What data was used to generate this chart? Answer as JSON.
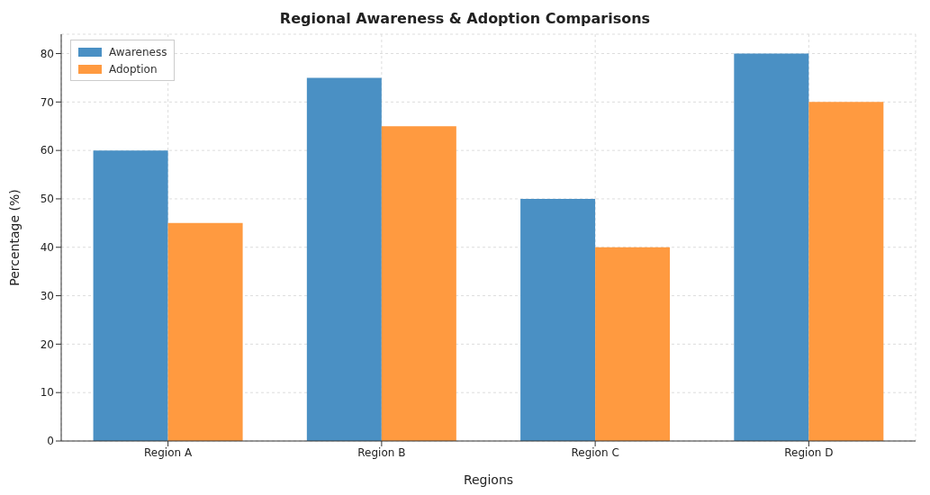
{
  "chart_data": {
    "type": "bar",
    "title": "Regional Awareness & Adoption Comparisons",
    "xlabel": "Regions",
    "ylabel": "Percentage (%)",
    "categories": [
      "Region A",
      "Region B",
      "Region C",
      "Region D"
    ],
    "series": [
      {
        "name": "Awareness",
        "color": "#4a90c4",
        "values": [
          60,
          75,
          50,
          80
        ]
      },
      {
        "name": "Adoption",
        "color": "#ff9a40",
        "values": [
          45,
          65,
          40,
          70
        ]
      }
    ],
    "ylim": [
      0,
      84
    ],
    "yticks": [
      0,
      10,
      20,
      30,
      40,
      50,
      60,
      70,
      80
    ],
    "grid": true,
    "legend": "top left"
  }
}
